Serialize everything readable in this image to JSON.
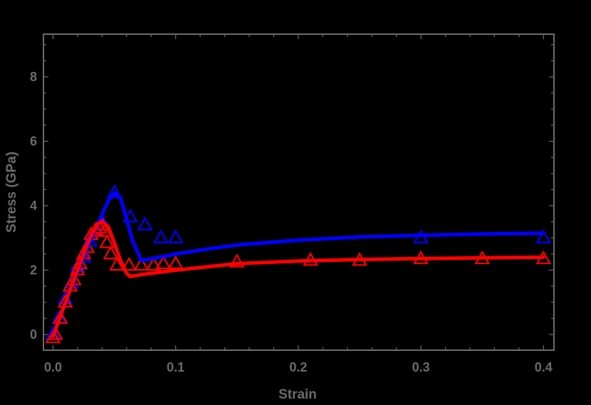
{
  "chart_data": {
    "type": "scatter",
    "title": "",
    "xlabel": "Strain",
    "ylabel": "Stress (GPa)",
    "xlim": [
      -0.008,
      0.408
    ],
    "ylim": [
      -0.45,
      9.35
    ],
    "xticks": [
      0.0,
      0.1,
      0.2,
      0.3,
      0.4
    ],
    "xtick_labels": [
      "0.0",
      "0.1",
      "0.2",
      "0.3",
      "0.4"
    ],
    "yticks": [
      0,
      2,
      4,
      6,
      8
    ],
    "ytick_labels": [
      "0",
      "2",
      "4",
      "6",
      "8"
    ],
    "grid": false,
    "legend": null,
    "background": "#000000",
    "frame_color": "#6b6b6b",
    "series": [
      {
        "name": "blue-data",
        "kind": "markers",
        "marker": "triangle-open",
        "color": "#0000ff",
        "x": [
          0.0,
          0.005,
          0.01,
          0.015,
          0.02,
          0.025,
          0.03,
          0.035,
          0.04,
          0.05,
          0.063,
          0.075,
          0.088,
          0.1,
          0.3,
          0.4
        ],
        "y": [
          0.0,
          0.5,
          1.1,
          1.6,
          2.1,
          2.4,
          2.9,
          3.2,
          3.5,
          4.4,
          3.65,
          3.4,
          3.0,
          3.0,
          3.0,
          3.0
        ]
      },
      {
        "name": "blue-fit",
        "kind": "line",
        "color": "#0000ff",
        "x": [
          0.0,
          0.02,
          0.035,
          0.045,
          0.05,
          0.055,
          0.06,
          0.065,
          0.072,
          0.08,
          0.1,
          0.125,
          0.15,
          0.2,
          0.25,
          0.3,
          0.35,
          0.4
        ],
        "y": [
          0.0,
          1.95,
          3.3,
          4.15,
          4.4,
          4.25,
          3.6,
          2.9,
          2.3,
          2.35,
          2.5,
          2.65,
          2.78,
          2.93,
          3.03,
          3.08,
          3.12,
          3.15
        ]
      },
      {
        "name": "red-data",
        "kind": "markers",
        "marker": "triangle-open",
        "color": "#ff0000",
        "x": [
          0.0,
          0.002,
          0.006,
          0.01,
          0.014,
          0.017,
          0.02,
          0.022,
          0.025,
          0.028,
          0.031,
          0.035,
          0.038,
          0.04,
          0.042,
          0.044,
          0.047,
          0.052,
          0.062,
          0.072,
          0.082,
          0.09,
          0.1,
          0.15,
          0.21,
          0.25,
          0.3,
          0.35,
          0.4
        ],
        "y": [
          -0.1,
          0.0,
          0.5,
          1.0,
          1.5,
          1.7,
          2.0,
          2.2,
          2.5,
          2.7,
          3.1,
          3.25,
          3.3,
          3.4,
          3.2,
          2.85,
          2.5,
          2.15,
          2.15,
          2.15,
          2.15,
          2.2,
          2.2,
          2.25,
          2.3,
          2.3,
          2.35,
          2.35,
          2.35
        ]
      },
      {
        "name": "red-fit",
        "kind": "line",
        "color": "#ff0000",
        "x": [
          0.0,
          0.015,
          0.03,
          0.037,
          0.04,
          0.045,
          0.05,
          0.055,
          0.06,
          0.063,
          0.07,
          0.08,
          0.1,
          0.15,
          0.2,
          0.25,
          0.3,
          0.35,
          0.4
        ],
        "y": [
          -0.05,
          1.5,
          3.0,
          3.45,
          3.5,
          3.35,
          2.85,
          2.3,
          1.9,
          1.8,
          1.85,
          1.9,
          2.0,
          2.2,
          2.28,
          2.33,
          2.36,
          2.38,
          2.4
        ]
      }
    ]
  }
}
